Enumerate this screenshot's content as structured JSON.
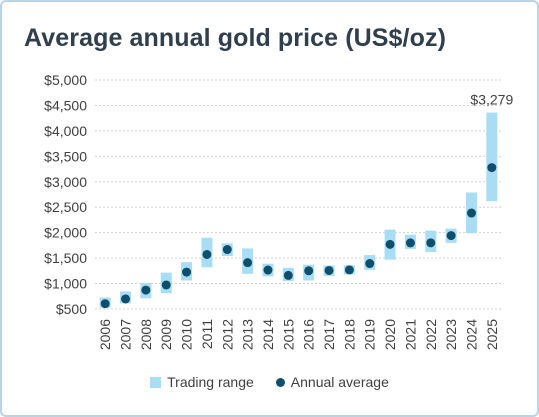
{
  "colors": {
    "range_fill": "#a9ddf5",
    "average_marker": "#0d4f6c",
    "title_text": "#2f3f4e",
    "axis_text": "#404040",
    "grid": "#d0d0d0"
  },
  "chart_data": {
    "type": "range_and_point",
    "title": "Average annual gold price (US$/oz)",
    "xlabel": "",
    "ylabel": "",
    "ylim": [
      500,
      5000
    ],
    "y_ticks": [
      500,
      1000,
      1500,
      2000,
      2500,
      3000,
      3500,
      4000,
      4500,
      5000
    ],
    "y_tick_labels": [
      "$500",
      "$1,000",
      "$1,500",
      "$2,000",
      "$2,500",
      "$3,000",
      "$3,500",
      "$4,000",
      "$4,500",
      "$5,000"
    ],
    "grid": "horizontal-dashed",
    "legend_position": "bottom",
    "categories": [
      "2006",
      "2007",
      "2008",
      "2009",
      "2010",
      "2011",
      "2012",
      "2013",
      "2014",
      "2015",
      "2016",
      "2017",
      "2018",
      "2019",
      "2020",
      "2021",
      "2022",
      "2023",
      "2024",
      "2025"
    ],
    "series": [
      {
        "name": "Trading range",
        "kind": "range",
        "low": [
          525,
          610,
          710,
          810,
          1060,
          1320,
          1540,
          1190,
          1140,
          1050,
          1060,
          1150,
          1180,
          1270,
          1470,
          1680,
          1620,
          1800,
          1990,
          2620
        ],
        "high": [
          725,
          845,
          1010,
          1215,
          1420,
          1900,
          1790,
          1690,
          1390,
          1310,
          1370,
          1355,
          1360,
          1560,
          2060,
          1960,
          2040,
          2080,
          2790,
          4360
        ]
      },
      {
        "name": "Annual average",
        "kind": "point",
        "values": [
          604,
          697,
          872,
          972,
          1225,
          1572,
          1669,
          1411,
          1266,
          1160,
          1251,
          1257,
          1268,
          1393,
          1770,
          1799,
          1800,
          1943,
          2386,
          3279
        ]
      }
    ],
    "annotations": [
      {
        "category": "2025",
        "text": "$3,279"
      }
    ]
  }
}
